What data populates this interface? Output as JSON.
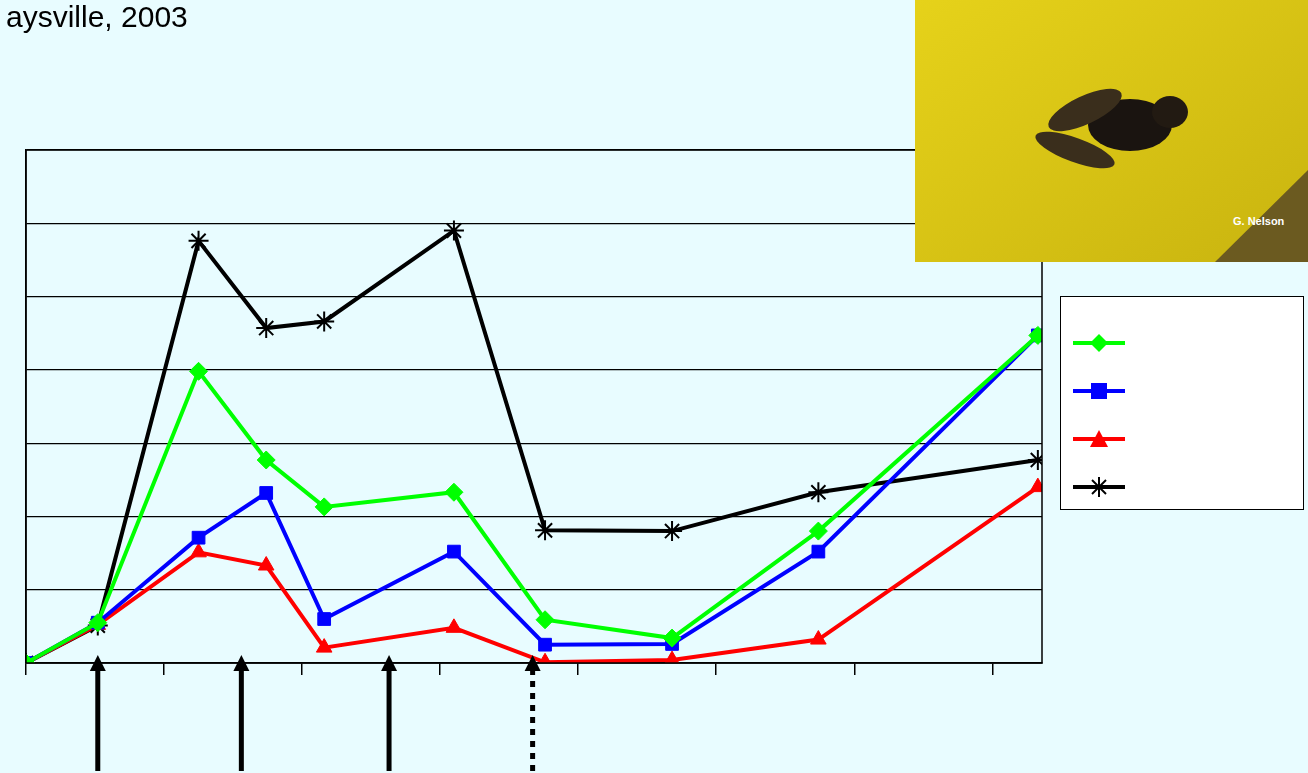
{
  "chart_data": {
    "type": "line",
    "title": "aysville, 2003",
    "photo_credit": "G. Nelson",
    "x": [
      0,
      0.52,
      1.25,
      1.74,
      2.16,
      3.1,
      3.76,
      4.68,
      5.74,
      7.33
    ],
    "xlim": [
      0,
      7.36
    ],
    "xticks": [
      0,
      1,
      2,
      3,
      4,
      5,
      6,
      7
    ],
    "ylim": [
      0,
      7
    ],
    "yticks": [
      0,
      1,
      2,
      3,
      4,
      5,
      6,
      7
    ],
    "grid": true,
    "tick_labels": false,
    "legend": "right",
    "series": [
      {
        "color": "#00ff00",
        "marker": "diamond",
        "values": [
          0,
          0.55,
          3.98,
          2.77,
          2.13,
          2.33,
          0.59,
          0.34,
          1.8,
          4.47
        ]
      },
      {
        "color": "#0000ff",
        "marker": "square",
        "values": [
          0,
          0.55,
          1.71,
          2.32,
          0.6,
          1.52,
          0.25,
          0.26,
          1.52,
          4.47
        ]
      },
      {
        "color": "#ff0000",
        "marker": "triangle",
        "values": [
          0,
          0.52,
          1.51,
          1.33,
          0.21,
          0.48,
          0.01,
          0.04,
          0.32,
          2.4
        ]
      },
      {
        "color": "#000000",
        "marker": "star",
        "values": [
          0,
          0.51,
          5.76,
          4.57,
          4.66,
          5.9,
          1.81,
          1.8,
          2.33,
          2.77
        ]
      }
    ],
    "arrows": {
      "x": [
        0.52,
        1.56,
        2.63,
        3.67
      ],
      "line_styles": [
        "solid",
        "solid",
        "solid",
        "dotted"
      ]
    }
  }
}
